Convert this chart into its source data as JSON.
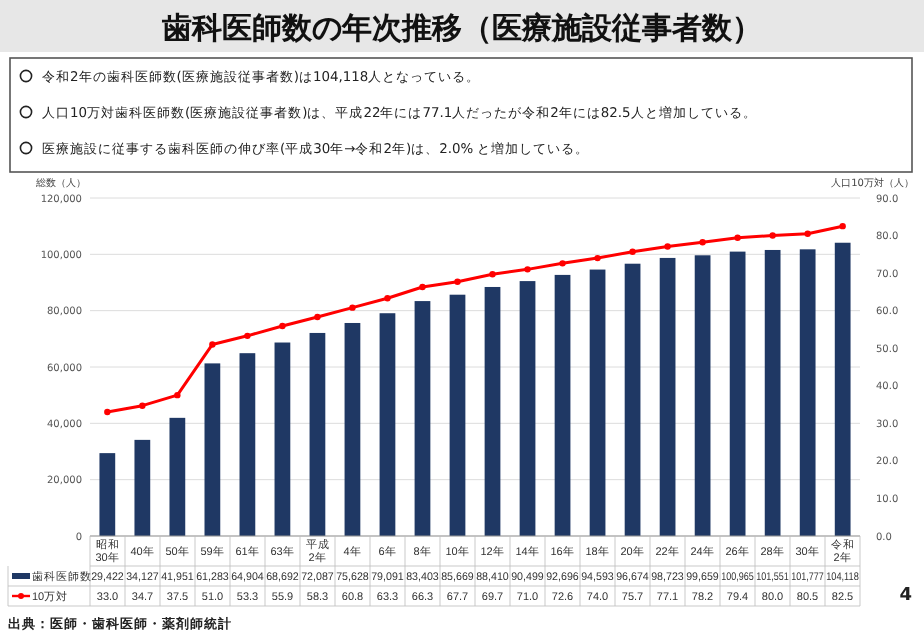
{
  "chart_data": {
    "type": "bar",
    "title": "歯科医師数の年次推移（医療施設従事者数）",
    "annotations": [
      "令和2年の歯科医師数(医療施設従事者数)は104,118人となっている。",
      "人口10万対歯科医師数(医療施設従事者数)は、平成22年には77.1人だったが令和2年には82.5人と増加している。",
      "医療施設に従事する歯科医師の伸び率(平成30年→令和2年)は、2.0% と増加している。",
      "出典：医師・歯科医師・薬剤師統計",
      "4"
    ],
    "ylabel": "総数（人）",
    "y2label": "人口10万対（人）",
    "categories": [
      "昭和30年",
      "40年",
      "50年",
      "59年",
      "61年",
      "63年",
      "平成2年",
      "4年",
      "6年",
      "8年",
      "10年",
      "12年",
      "14年",
      "16年",
      "18年",
      "20年",
      "22年",
      "24年",
      "26年",
      "28年",
      "30年",
      "令和2年"
    ],
    "series": [
      {
        "name": "歯科医師数",
        "color": "#1f3864",
        "values": [
          29422,
          34127,
          41951,
          61283,
          64904,
          68692,
          72087,
          75628,
          79091,
          83403,
          85669,
          88410,
          90499,
          92696,
          94593,
          96674,
          98723,
          99659,
          100965,
          101551,
          101777,
          104118
        ],
        "value_labels": [
          "29,422",
          "34,127",
          "41,951",
          "61,283",
          "64,904",
          "68,692",
          "72,087",
          "75,628",
          "79,091",
          "83,403",
          "85,669",
          "88,410",
          "90,499",
          "92,696",
          "94,593",
          "96,674",
          "98,723",
          "99,659",
          "100,965",
          "101,551",
          "101,777",
          "104,118"
        ]
      },
      {
        "name": "10万対",
        "type": "line",
        "axis": "y2",
        "color": "#ff0000",
        "values": [
          33.0,
          34.7,
          37.5,
          51.0,
          53.3,
          55.9,
          58.3,
          60.8,
          63.3,
          66.3,
          67.7,
          69.7,
          71.0,
          72.6,
          74.0,
          75.7,
          77.1,
          78.2,
          79.4,
          80.0,
          80.5,
          82.5
        ],
        "value_labels": [
          "33.0",
          "34.7",
          "37.5",
          "51.0",
          "53.3",
          "55.9",
          "58.3",
          "60.8",
          "63.3",
          "66.3",
          "67.7",
          "69.7",
          "71.0",
          "72.6",
          "74.0",
          "75.7",
          "77.1",
          "78.2",
          "79.4",
          "80.0",
          "80.5",
          "82.5"
        ]
      }
    ],
    "ylim": [
      0,
      120000
    ],
    "yticks": [
      {
        "value": 0,
        "label": "0"
      },
      {
        "value": 20000,
        "label": "20,000"
      },
      {
        "value": 40000,
        "label": "40,000"
      },
      {
        "value": 60000,
        "label": "60,000"
      },
      {
        "value": 80000,
        "label": "80,000"
      },
      {
        "value": 100000,
        "label": "100,000"
      },
      {
        "value": 120000,
        "label": "120,000"
      }
    ],
    "y2lim": [
      0,
      90
    ],
    "y2ticks": [
      {
        "value": 0,
        "label": "0.0"
      },
      {
        "value": 10,
        "label": "10.0"
      },
      {
        "value": 20,
        "label": "20.0"
      },
      {
        "value": 30,
        "label": "30.0"
      },
      {
        "value": 40,
        "label": "40.0"
      },
      {
        "value": 50,
        "label": "50.0"
      },
      {
        "value": 60,
        "label": "60.0"
      },
      {
        "value": 70,
        "label": "70.0"
      },
      {
        "value": 80,
        "label": "80.0"
      },
      {
        "value": 90,
        "label": "90.0"
      }
    ],
    "grid": "y",
    "legend": "bottom left",
    "marker": "circle"
  }
}
